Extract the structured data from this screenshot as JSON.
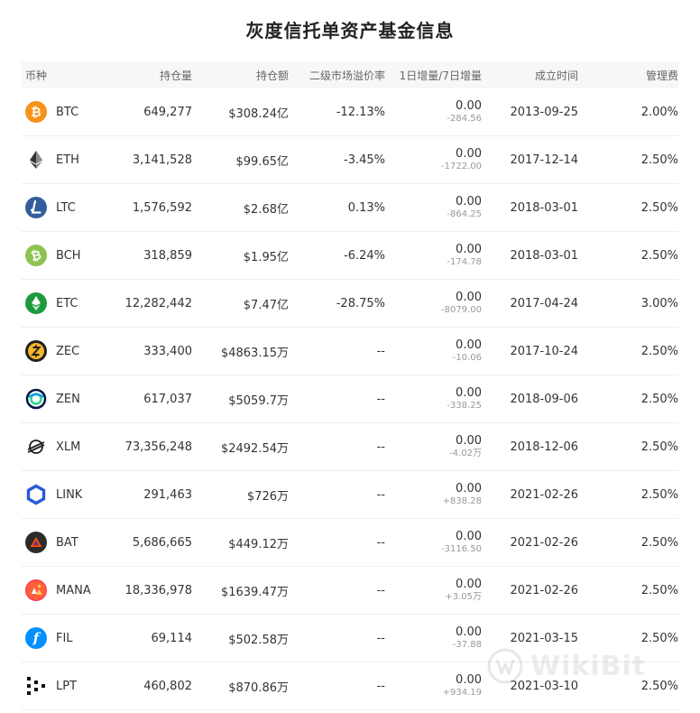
{
  "title": "灰度信托单资产基金信息",
  "headers": {
    "coin": "币种",
    "holdings": "持仓量",
    "value": "持仓额",
    "premium": "二级市场溢价率",
    "increase": "1日增量/7日增量",
    "founded": "成立时间",
    "fee": "管理费"
  },
  "rows": [
    {
      "icon": "btc-icon",
      "symbol": "BTC",
      "holdings": "649,277",
      "value": "$308.24亿",
      "premium": "-12.13%",
      "inc1": "0.00",
      "inc7": "-284.56",
      "founded": "2013-09-25",
      "fee": "2.00%"
    },
    {
      "icon": "eth-icon",
      "symbol": "ETH",
      "holdings": "3,141,528",
      "value": "$99.65亿",
      "premium": "-3.45%",
      "inc1": "0.00",
      "inc7": "-1722.00",
      "founded": "2017-12-14",
      "fee": "2.50%"
    },
    {
      "icon": "ltc-icon",
      "symbol": "LTC",
      "holdings": "1,576,592",
      "value": "$2.68亿",
      "premium": "0.13%",
      "inc1": "0.00",
      "inc7": "-864.25",
      "founded": "2018-03-01",
      "fee": "2.50%"
    },
    {
      "icon": "bch-icon",
      "symbol": "BCH",
      "holdings": "318,859",
      "value": "$1.95亿",
      "premium": "-6.24%",
      "inc1": "0.00",
      "inc7": "-174.78",
      "founded": "2018-03-01",
      "fee": "2.50%"
    },
    {
      "icon": "etc-icon",
      "symbol": "ETC",
      "holdings": "12,282,442",
      "value": "$7.47亿",
      "premium": "-28.75%",
      "inc1": "0.00",
      "inc7": "-8079.00",
      "founded": "2017-04-24",
      "fee": "3.00%"
    },
    {
      "icon": "zec-icon",
      "symbol": "ZEC",
      "holdings": "333,400",
      "value": "$4863.15万",
      "premium": "--",
      "inc1": "0.00",
      "inc7": "-10.06",
      "founded": "2017-10-24",
      "fee": "2.50%"
    },
    {
      "icon": "zen-icon",
      "symbol": "ZEN",
      "holdings": "617,037",
      "value": "$5059.7万",
      "premium": "--",
      "inc1": "0.00",
      "inc7": "-338.25",
      "founded": "2018-09-06",
      "fee": "2.50%"
    },
    {
      "icon": "xlm-icon",
      "symbol": "XLM",
      "holdings": "73,356,248",
      "value": "$2492.54万",
      "premium": "--",
      "inc1": "0.00",
      "inc7": "-4.02万",
      "founded": "2018-12-06",
      "fee": "2.50%"
    },
    {
      "icon": "link-icon",
      "symbol": "LINK",
      "holdings": "291,463",
      "value": "$726万",
      "premium": "--",
      "inc1": "0.00",
      "inc7": "+838.28",
      "founded": "2021-02-26",
      "fee": "2.50%"
    },
    {
      "icon": "bat-icon",
      "symbol": "BAT",
      "holdings": "5,686,665",
      "value": "$449.12万",
      "premium": "--",
      "inc1": "0.00",
      "inc7": "-3116.50",
      "founded": "2021-02-26",
      "fee": "2.50%"
    },
    {
      "icon": "mana-icon",
      "symbol": "MANA",
      "holdings": "18,336,978",
      "value": "$1639.47万",
      "premium": "--",
      "inc1": "0.00",
      "inc7": "+3.05万",
      "founded": "2021-02-26",
      "fee": "2.50%"
    },
    {
      "icon": "fil-icon",
      "symbol": "FIL",
      "holdings": "69,114",
      "value": "$502.58万",
      "premium": "--",
      "inc1": "0.00",
      "inc7": "-37.88",
      "founded": "2021-03-15",
      "fee": "2.50%"
    },
    {
      "icon": "lpt-icon",
      "symbol": "LPT",
      "holdings": "460,802",
      "value": "$870.86万",
      "premium": "--",
      "inc1": "0.00",
      "inc7": "+934.19",
      "founded": "2021-03-10",
      "fee": "2.50%"
    }
  ],
  "watermark": "WikiBit",
  "colors": {
    "header_bg": "#f7f7f7",
    "btc": "#f7931a",
    "ltc": "#345d9d",
    "bch": "#8dc351",
    "etc": "#1d9a3b",
    "link": "#2a5ada",
    "fil": "#0090ff"
  }
}
